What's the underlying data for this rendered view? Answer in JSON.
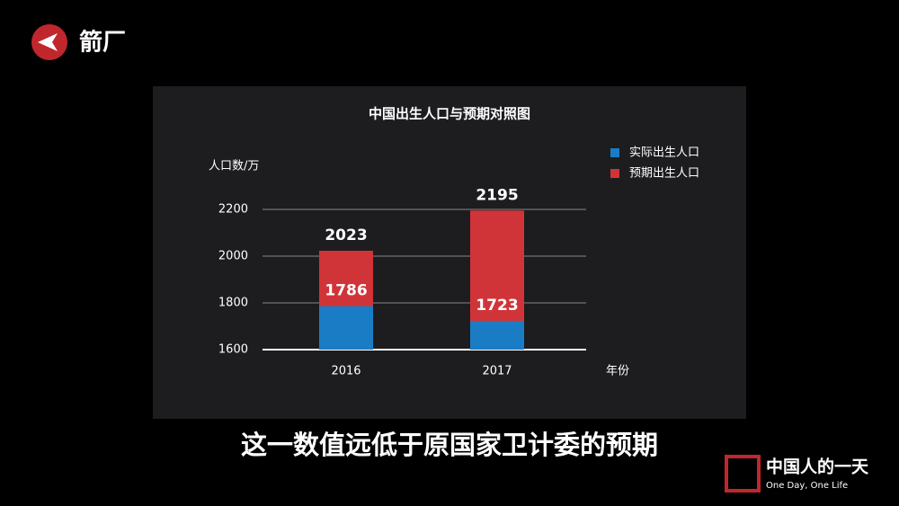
{
  "brand": "箭厂",
  "caption": "这一数值远低于原国家卫计委的预期",
  "watermark": {
    "title": "中国人的一天",
    "subtitle": "One Day, One Life"
  },
  "chart_data": {
    "type": "bar",
    "title": "中国出生人口与预期对照图",
    "ylabel": "人口数/万",
    "xlabel": "年份",
    "categories": [
      "2016",
      "2017"
    ],
    "series": [
      {
        "name": "实际出生人口",
        "color": "#1b7cc6",
        "values": [
          1786,
          1723
        ]
      },
      {
        "name": "预期出生人口",
        "color": "#d13438",
        "values": [
          2023,
          2195
        ]
      }
    ],
    "ylim": [
      1600,
      2200
    ],
    "yticks": [
      1600,
      1800,
      2000,
      2200
    ],
    "grid": true
  }
}
